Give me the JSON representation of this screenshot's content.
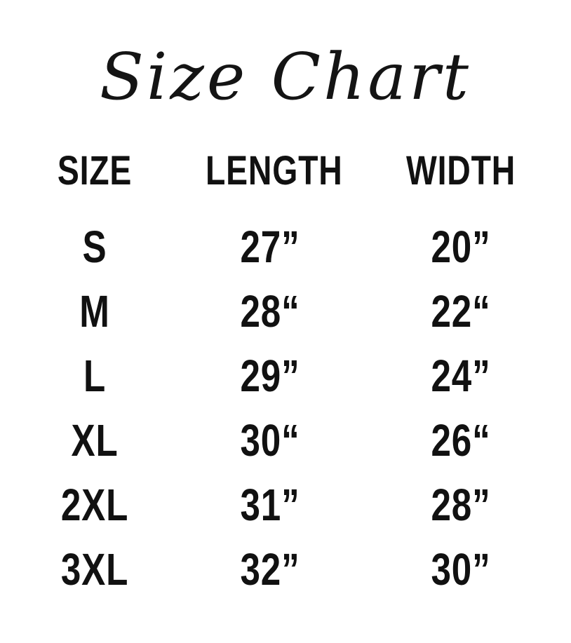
{
  "colors": {
    "background": "#ffffff",
    "text": "#111111"
  },
  "chart_data": {
    "type": "table",
    "title": "Size Chart",
    "columns": [
      "SIZE",
      "LENGTH",
      "WIDTH"
    ],
    "rows": [
      [
        "S",
        "27”",
        "20”"
      ],
      [
        "M",
        "28“",
        "22“"
      ],
      [
        "L",
        "29”",
        "24”"
      ],
      [
        "XL",
        "30“",
        "26“"
      ],
      [
        "2XL",
        "31”",
        "28”"
      ],
      [
        "3XL",
        "32”",
        "30”"
      ]
    ]
  }
}
